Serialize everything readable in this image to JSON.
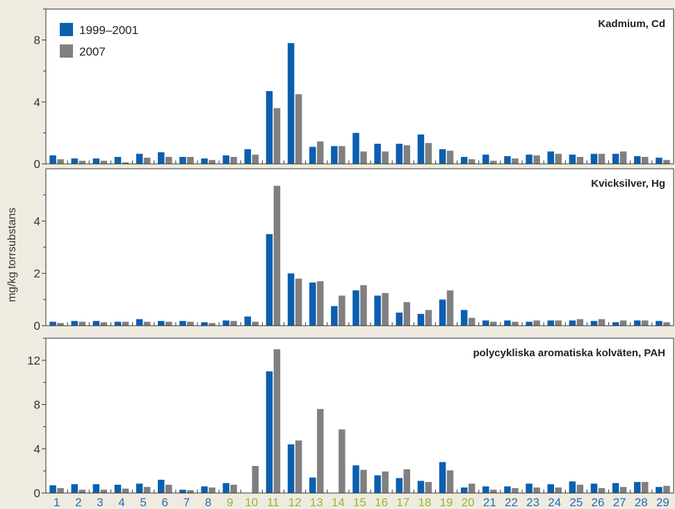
{
  "chart_data": {
    "type": "bar",
    "ylabel": "mg/kg torrsubstans",
    "categories": [
      "1",
      "2",
      "3",
      "4",
      "5",
      "6",
      "7",
      "8",
      "9",
      "10",
      "11",
      "12",
      "13",
      "14",
      "15",
      "16",
      "17",
      "18",
      "19",
      "20",
      "21",
      "22",
      "23",
      "24",
      "25",
      "26",
      "27",
      "28",
      "29"
    ],
    "category_colors": [
      "#1f6db5",
      "#1f6db5",
      "#1f6db5",
      "#1f6db5",
      "#1f6db5",
      "#1f6db5",
      "#1f6db5",
      "#1f6db5",
      "#8dbb2e",
      "#8dbb2e",
      "#8dbb2e",
      "#8dbb2e",
      "#8dbb2e",
      "#8dbb2e",
      "#8dbb2e",
      "#8dbb2e",
      "#8dbb2e",
      "#8dbb2e",
      "#8dbb2e",
      "#8dbb2e",
      "#1f6db5",
      "#1f6db5",
      "#1f6db5",
      "#1f6db5",
      "#1f6db5",
      "#1f6db5",
      "#1f6db5",
      "#1f6db5",
      "#1f6db5"
    ],
    "legend": [
      {
        "name": "1999–2001",
        "color": "#0b5fb0"
      },
      {
        "name": "2007",
        "color": "#808080"
      }
    ],
    "legend_position": "top-left",
    "panels": [
      {
        "title": "Kadmium, Cd",
        "ylim": [
          0,
          10
        ],
        "yticks": [
          0,
          4,
          8
        ],
        "minor_ticks": [
          2,
          6,
          10
        ],
        "series": [
          {
            "name": "1999–2001",
            "values": [
              0.55,
              0.35,
              0.35,
              0.45,
              0.65,
              0.75,
              0.45,
              0.35,
              0.55,
              0.95,
              4.7,
              7.8,
              1.1,
              1.15,
              2.0,
              1.3,
              1.3,
              1.9,
              0.95,
              0.45,
              0.6,
              0.5,
              0.6,
              0.8,
              0.6,
              0.65,
              0.65,
              0.5,
              0.4
            ]
          },
          {
            "name": "2007",
            "values": [
              0.3,
              0.2,
              0.2,
              0.1,
              0.4,
              0.45,
              0.45,
              0.25,
              0.45,
              0.6,
              3.6,
              4.5,
              1.45,
              1.15,
              0.8,
              0.8,
              1.2,
              1.35,
              0.85,
              0.3,
              0.2,
              0.35,
              0.55,
              0.65,
              0.45,
              0.65,
              0.8,
              0.45,
              0.25
            ]
          }
        ]
      },
      {
        "title": "Kvicksilver, Hg",
        "ylim": [
          0,
          6
        ],
        "yticks": [
          0,
          2,
          4
        ],
        "minor_ticks": [
          1,
          3,
          5
        ],
        "series": [
          {
            "name": "1999–2001",
            "values": [
              0.15,
              0.18,
              0.18,
              0.15,
              0.25,
              0.18,
              0.18,
              0.13,
              0.2,
              0.35,
              3.5,
              2.0,
              1.65,
              0.75,
              1.35,
              1.15,
              0.5,
              0.45,
              1.0,
              0.6,
              0.2,
              0.2,
              0.15,
              0.2,
              0.2,
              0.18,
              0.13,
              0.2,
              0.18
            ]
          },
          {
            "name": "2007",
            "values": [
              0.1,
              0.15,
              0.13,
              0.15,
              0.15,
              0.15,
              0.15,
              0.1,
              0.18,
              0.15,
              5.35,
              1.8,
              1.7,
              1.15,
              1.55,
              1.25,
              0.9,
              0.6,
              1.35,
              0.3,
              0.15,
              0.15,
              0.2,
              0.2,
              0.25,
              0.25,
              0.2,
              0.2,
              0.13
            ]
          }
        ]
      },
      {
        "title": "polycykliska aromatiska kolväten, PAH",
        "ylim": [
          0,
          14
        ],
        "yticks": [
          0,
          4,
          8,
          12
        ],
        "minor_ticks": [
          2,
          6,
          10,
          14
        ],
        "series": [
          {
            "name": "1999–2001",
            "values": [
              0.7,
              0.8,
              0.8,
              0.75,
              0.85,
              1.2,
              0.3,
              0.6,
              0.9,
              0,
              11.0,
              4.4,
              1.4,
              0,
              2.5,
              1.6,
              1.35,
              1.1,
              2.8,
              0.5,
              0.6,
              0.6,
              0.85,
              0.8,
              1.05,
              0.85,
              0.9,
              1.0,
              0.55
            ]
          },
          {
            "name": "2007",
            "values": [
              0.45,
              0.3,
              0.3,
              0.4,
              0.55,
              0.75,
              0.25,
              0.5,
              0.75,
              2.45,
              13.0,
              4.75,
              7.6,
              5.75,
              2.1,
              1.95,
              2.15,
              1.0,
              2.05,
              0.85,
              0.3,
              0.45,
              0.5,
              0.5,
              0.75,
              0.45,
              0.55,
              1.0,
              0.65
            ]
          }
        ]
      }
    ]
  }
}
